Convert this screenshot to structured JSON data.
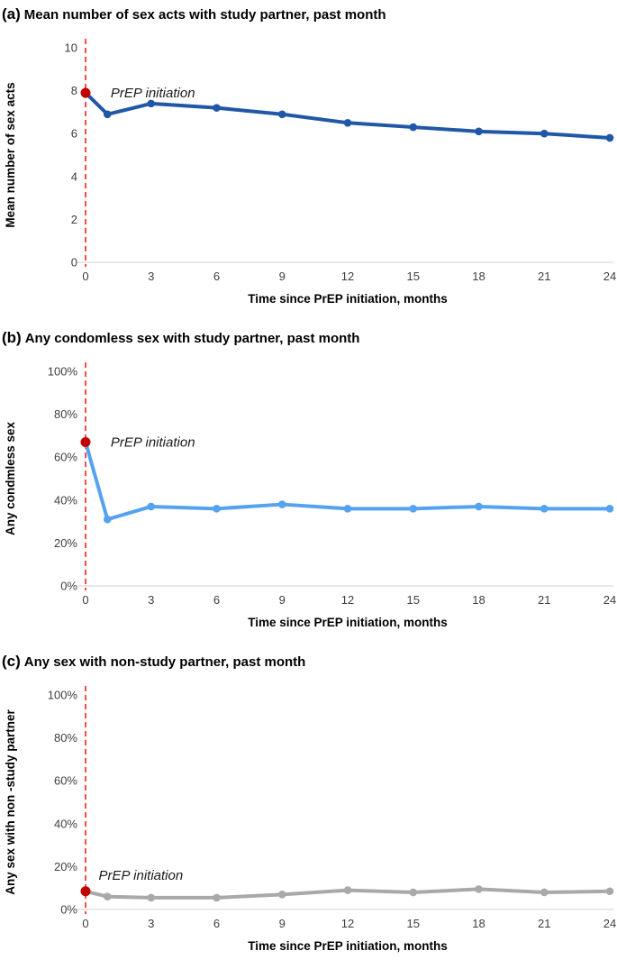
{
  "figure": {
    "xlabel": "Time since PrEP initiation, months",
    "annotation_label": "PrEP initiation"
  },
  "colors": {
    "panel_a_line": "#2057A7",
    "panel_b_line": "#55A3F0",
    "panel_c_line": "#A9A9A9",
    "start_marker": "#C00000",
    "vline": "#FF2020",
    "axis_line": "#D9D9D9",
    "tick_text": "#3F3F3F"
  },
  "chart_data": [
    {
      "type": "line",
      "panel": "(a)",
      "title": "Mean number of sex acts with study partner, past month",
      "x": [
        0,
        1,
        3,
        6,
        9,
        12,
        15,
        18,
        21,
        24
      ],
      "values": [
        7.9,
        6.9,
        7.4,
        7.2,
        6.9,
        6.5,
        6.3,
        6.1,
        6.0,
        5.8
      ],
      "xlabel": "Time since PrEP initiation, months",
      "ylabel": "Mean number of sex acts",
      "xlim": [
        0,
        24
      ],
      "ylim": [
        0,
        10
      ],
      "xticks": [
        0,
        3,
        6,
        9,
        12,
        15,
        18,
        21,
        24
      ],
      "yticks": [
        0,
        2,
        4,
        6,
        8,
        10
      ],
      "ytick_suffix": "",
      "grid": false,
      "legend": "none",
      "line_color": "#2057A7",
      "marker_color": "#2057A7",
      "start_marker_color": "#C00000",
      "vline": {
        "x": 0,
        "color": "#FF2020",
        "style": "dashed"
      },
      "annotation": {
        "text": "PrEP initiation",
        "x": 1.15,
        "y": 7.9
      }
    },
    {
      "type": "line",
      "panel": "(b)",
      "title": "Any condomless sex with study partner, past month",
      "x": [
        0,
        1,
        3,
        6,
        9,
        12,
        15,
        18,
        21,
        24
      ],
      "values": [
        67,
        31,
        37,
        36,
        38,
        36,
        36,
        37,
        36,
        36
      ],
      "xlabel": "Time since PrEP initiation, months",
      "ylabel": "Any condmless sex",
      "xlim": [
        0,
        24
      ],
      "ylim": [
        0,
        100
      ],
      "xticks": [
        0,
        3,
        6,
        9,
        12,
        15,
        18,
        21,
        24
      ],
      "yticks": [
        0,
        20,
        40,
        60,
        80,
        100
      ],
      "ytick_suffix": "%",
      "grid": false,
      "legend": "none",
      "line_color": "#55A3F0",
      "marker_color": "#55A3F0",
      "start_marker_color": "#C00000",
      "vline": {
        "x": 0,
        "color": "#FF2020",
        "style": "dashed"
      },
      "annotation": {
        "text": "PrEP initiation",
        "x": 1.15,
        "y": 67
      }
    },
    {
      "type": "line",
      "panel": "(c)",
      "title": "Any sex with non-study partner, past month",
      "x": [
        0,
        1,
        3,
        6,
        9,
        12,
        15,
        18,
        21,
        24
      ],
      "values": [
        8.5,
        6,
        5.5,
        5.5,
        7,
        9,
        8,
        9.5,
        8,
        8.5
      ],
      "xlabel": "Time since PrEP initiation, months",
      "ylabel": "Any sex with non -study partner",
      "xlim": [
        0,
        24
      ],
      "ylim": [
        0,
        100
      ],
      "xticks": [
        0,
        3,
        6,
        9,
        12,
        15,
        18,
        21,
        24
      ],
      "yticks": [
        0,
        20,
        40,
        60,
        80,
        100
      ],
      "ytick_suffix": "%",
      "grid": false,
      "legend": "none",
      "line_color": "#A9A9A9",
      "marker_color": "#A9A9A9",
      "start_marker_color": "#C00000",
      "vline": {
        "x": 0,
        "color": "#FF2020",
        "style": "dashed"
      },
      "annotation": {
        "text": "PrEP initiation",
        "x": 0.6,
        "y": 16
      }
    }
  ]
}
